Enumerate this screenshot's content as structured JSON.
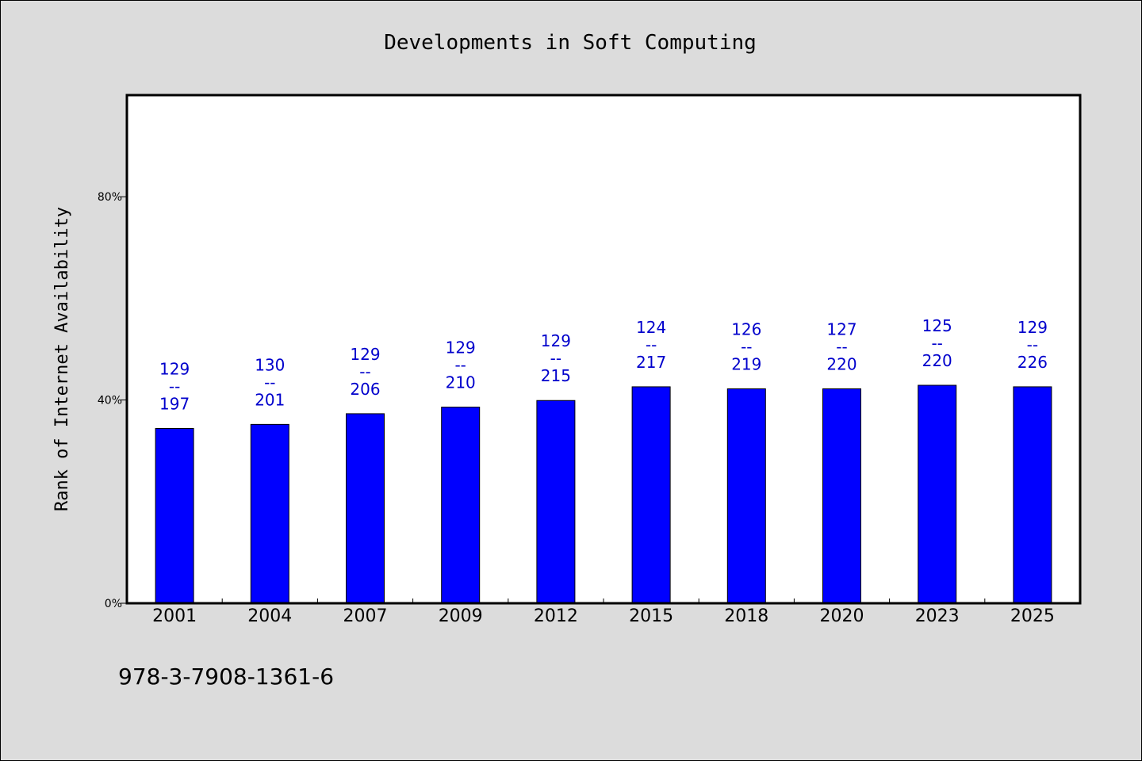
{
  "chart_data": {
    "type": "bar",
    "title": "Developments in Soft Computing",
    "ylabel": "Rank of Internet Availability",
    "xlabel": "",
    "ylim": [
      0,
      100
    ],
    "yticks": [
      0,
      40,
      80
    ],
    "ytick_labels": [
      "0%",
      "40%",
      "80%"
    ],
    "categories": [
      "2001",
      "2004",
      "2007",
      "2009",
      "2012",
      "2015",
      "2018",
      "2020",
      "2023",
      "2025"
    ],
    "values": [
      34.4,
      35.2,
      37.3,
      38.6,
      39.9,
      42.6,
      42.2,
      42.2,
      42.9,
      42.6
    ],
    "label_top": [
      "129",
      "130",
      "129",
      "129",
      "129",
      "124",
      "126",
      "127",
      "125",
      "129"
    ],
    "label_mid": [
      "--",
      "--",
      "--",
      "--",
      "--",
      "--",
      "--",
      "--",
      "--",
      "--"
    ],
    "label_bottom": [
      "197",
      "201",
      "206",
      "210",
      "215",
      "217",
      "219",
      "220",
      "220",
      "226"
    ],
    "bar_color": "#0000ff",
    "label_color": "#0000cc",
    "grid": false,
    "legend": "none"
  },
  "footnote": "978-3-7908-1361-6"
}
